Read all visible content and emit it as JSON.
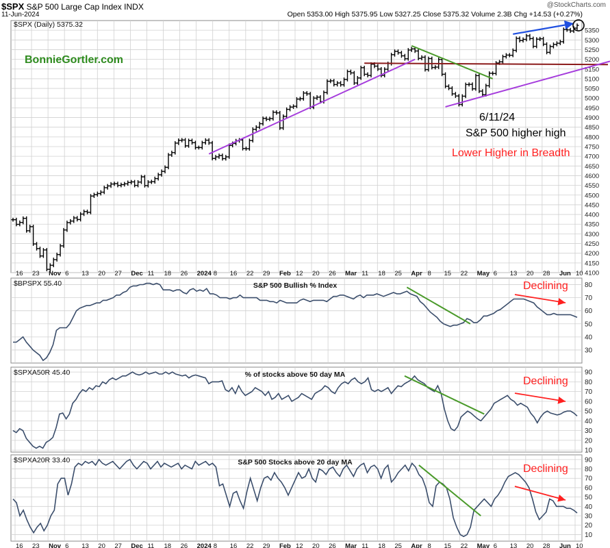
{
  "header": {
    "symbol": "$SPX",
    "name": "S&P 500 Large Cap Index",
    "exchange": "INDX",
    "date": "11-Jun-2024",
    "ohlc": "Open 5353.00  High 5375.95  Low 5327.25  Close 5375.32  Volume 2.3B  Chg +14.53 (+0.27%)",
    "logo": "@StockCharts.com"
  },
  "colors": {
    "price": "#000000",
    "indicator": "#3a4d6b",
    "support": "#a53cdc",
    "resistance": "#8b1a1a",
    "trend_down": "#4a9a2a",
    "trend_up": "#1f4fe0",
    "declining": "#ff2020",
    "brand": "#2e8b1e",
    "grid": "#d0d0d0"
  },
  "annotations": {
    "brand": "BonnieGortler.com",
    "date_note": "6/11/24",
    "higher_high": "S&P 500 higher high",
    "breadth": "Lower Higher in Breadth",
    "declining": "Declining"
  },
  "chart_data": [
    {
      "type": "line",
      "title": "$SPX (Daily) 5375.32",
      "ylim": [
        4100,
        5400
      ],
      "yticks": [
        4100,
        4150,
        4200,
        4250,
        4300,
        4350,
        4400,
        4450,
        4500,
        4550,
        4600,
        4650,
        4700,
        4750,
        4800,
        4850,
        4900,
        4950,
        5000,
        5050,
        5100,
        5150,
        5200,
        5250,
        5300,
        5350
      ],
      "xticks": [
        "16",
        "23",
        "Nov",
        "6",
        "13",
        "20",
        "27",
        "Dec",
        "11",
        "18",
        "26",
        "2024",
        "8",
        "16",
        "22",
        "29",
        "Feb",
        "12",
        "20",
        "26",
        "Mar",
        "11",
        "18",
        "25",
        "Apr",
        "8",
        "15",
        "22",
        "May",
        "6",
        "13",
        "20",
        "28",
        "Jun",
        "10"
      ],
      "bold_xticks": [
        "Nov",
        "Dec",
        "2024",
        "Feb",
        "Mar",
        "Apr",
        "May",
        "Jun"
      ],
      "values": [
        4373,
        4349,
        4359,
        4380,
        4316,
        4337,
        4248,
        4224,
        4186,
        4217,
        4117,
        4138,
        4167,
        4193,
        4238,
        4320,
        4358,
        4366,
        4382,
        4374,
        4402,
        4415,
        4411,
        4495,
        4502,
        4508,
        4515,
        4538,
        4547,
        4557,
        4559,
        4550,
        4554,
        4558,
        4565,
        4568,
        4550,
        4567,
        4594,
        4549,
        4567,
        4569,
        4585,
        4605,
        4622,
        4643,
        4707,
        4719,
        4768,
        4782,
        4784,
        4754,
        4781,
        4770,
        4745,
        4745,
        4770,
        4783,
        4769,
        4689,
        4697,
        4704,
        4688,
        4697,
        4756,
        4766,
        4780,
        4784,
        4740,
        4739,
        4781,
        4839,
        4850,
        4868,
        4895,
        4891,
        4894,
        4927,
        4924,
        4846,
        4906,
        4942,
        4954,
        4958,
        4995,
        4997,
        5026,
        5022,
        4953,
        5000,
        5005,
        4982,
        5029,
        5087,
        5089,
        5070,
        5078,
        5069,
        5096,
        5137,
        5130,
        5078,
        5104,
        5157,
        5123,
        5117,
        5175,
        5165,
        5150,
        5117,
        5149,
        5178,
        5224,
        5241,
        5234,
        5218,
        5203,
        5248,
        5254,
        5243,
        5205,
        5211,
        5147,
        5204,
        5158,
        5160,
        5199,
        5123,
        5061,
        5051,
        5022,
        5011,
        4967,
        5010,
        5070,
        5071,
        5048,
        5116,
        5036,
        5018,
        5064,
        5128,
        5127,
        5181,
        5187,
        5214,
        5222,
        5221,
        5246,
        5308,
        5297,
        5303,
        5321,
        5307,
        5267,
        5304,
        5306,
        5278,
        5236,
        5266,
        5277,
        5283,
        5291,
        5354,
        5352,
        5346,
        5361,
        5375
      ],
      "resistance_level": 5180,
      "current_value": 5375
    },
    {
      "type": "line",
      "title": "S&P 500 Bullish % Index",
      "label": "$BPSPX 55.40",
      "ylim": [
        20,
        85
      ],
      "yticks": [
        30,
        40,
        50,
        60,
        70,
        80
      ],
      "values": [
        36,
        36,
        38,
        40,
        36,
        33,
        30,
        28,
        26,
        22,
        24,
        28,
        34,
        45,
        47,
        47,
        47,
        50,
        55,
        60,
        62,
        63,
        64,
        64,
        65,
        66,
        66,
        68,
        68,
        69,
        70,
        72,
        72,
        74,
        75,
        78,
        79,
        79,
        80,
        80,
        81,
        81,
        80,
        81,
        80,
        76,
        76,
        76,
        75,
        76,
        76,
        74,
        73,
        76,
        77,
        75,
        76,
        75,
        77,
        73,
        73,
        72,
        70,
        70,
        70,
        69,
        70,
        70,
        72,
        70,
        70,
        70,
        70,
        70,
        68,
        68,
        68,
        67,
        67,
        66,
        68,
        67,
        66,
        66,
        66,
        66,
        68,
        69,
        68,
        67,
        68,
        68,
        68,
        68,
        67,
        69,
        71,
        71,
        72,
        72,
        71,
        70,
        69,
        71,
        72,
        70,
        72,
        72,
        72,
        73,
        72,
        71,
        72,
        73,
        74,
        73,
        73,
        74,
        75,
        73,
        72,
        71,
        67,
        65,
        62,
        59,
        57,
        55,
        52,
        50,
        49,
        48,
        49,
        49,
        50,
        51,
        54,
        53,
        51,
        51,
        53,
        56,
        56,
        57,
        58,
        60,
        61,
        63,
        65,
        67,
        69,
        69,
        69,
        69,
        68,
        67,
        66,
        63,
        61,
        59,
        57,
        57,
        58,
        57,
        57,
        57,
        57,
        57,
        56,
        55
      ]
    },
    {
      "type": "line",
      "title": "% of stocks above 50 day MA",
      "label": "$SPXA50R 45.40",
      "ylim": [
        8,
        95
      ],
      "yticks": [
        10,
        20,
        30,
        40,
        50,
        60,
        70,
        80,
        90
      ],
      "values": [
        30,
        28,
        32,
        30,
        22,
        18,
        14,
        12,
        14,
        12,
        18,
        20,
        23,
        33,
        47,
        48,
        42,
        47,
        58,
        62,
        68,
        72,
        70,
        74,
        72,
        76,
        75,
        80,
        78,
        82,
        84,
        82,
        84,
        86,
        86,
        88,
        90,
        88,
        87,
        88,
        90,
        88,
        89,
        90,
        88,
        88,
        90,
        88,
        90,
        88,
        87,
        86,
        87,
        84,
        86,
        87,
        86,
        85,
        84,
        78,
        80,
        80,
        80,
        81,
        72,
        70,
        74,
        68,
        76,
        70,
        66,
        68,
        70,
        74,
        72,
        70,
        66,
        70,
        62,
        64,
        68,
        62,
        64,
        66,
        60,
        62,
        64,
        68,
        66,
        64,
        62,
        68,
        70,
        72,
        76,
        74,
        70,
        68,
        74,
        78,
        80,
        78,
        82,
        84,
        80,
        78,
        80,
        84,
        72,
        70,
        72,
        70,
        72,
        74,
        68,
        72,
        76,
        75,
        78,
        80,
        82,
        86,
        82,
        80,
        78,
        74,
        72,
        70,
        76,
        68,
        52,
        40,
        32,
        30,
        34,
        44,
        47,
        50,
        48,
        45,
        42,
        40,
        44,
        48,
        52,
        58,
        60,
        62,
        64,
        66,
        62,
        60,
        56,
        58,
        56,
        54,
        48,
        44,
        38,
        44,
        48,
        50,
        48,
        47,
        46,
        47,
        49,
        50,
        50,
        48,
        45
      ]
    },
    {
      "type": "line",
      "title": "S&P 500 Stocks above 20 day MA",
      "label": "$SPXA20R 33.40",
      "ylim": [
        3,
        95
      ],
      "yticks": [
        10,
        20,
        30,
        40,
        50,
        60,
        70,
        80,
        90
      ],
      "values": [
        48,
        44,
        30,
        36,
        26,
        18,
        12,
        18,
        22,
        14,
        20,
        30,
        36,
        64,
        70,
        70,
        52,
        64,
        82,
        86,
        84,
        88,
        86,
        88,
        84,
        90,
        86,
        84,
        86,
        88,
        84,
        80,
        84,
        88,
        90,
        84,
        80,
        84,
        88,
        86,
        80,
        84,
        88,
        82,
        86,
        84,
        82,
        84,
        86,
        80,
        84,
        82,
        80,
        88,
        84,
        86,
        88,
        84,
        86,
        82,
        62,
        64,
        52,
        40,
        54,
        56,
        46,
        38,
        56,
        70,
        58,
        46,
        60,
        70,
        72,
        68,
        76,
        70,
        66,
        60,
        52,
        60,
        68,
        76,
        70,
        72,
        80,
        70,
        66,
        80,
        78,
        74,
        80,
        82,
        76,
        72,
        80,
        84,
        78,
        72,
        80,
        84,
        86,
        76,
        82,
        84,
        80,
        70,
        80,
        84,
        66,
        70,
        76,
        80,
        84,
        78,
        86,
        82,
        74,
        70,
        60,
        44,
        40,
        62,
        66,
        64,
        60,
        48,
        28,
        18,
        10,
        8,
        10,
        18,
        36,
        40,
        44,
        48,
        44,
        40,
        48,
        52,
        58,
        66,
        72,
        74,
        76,
        74,
        70,
        66,
        60,
        48,
        34,
        26,
        30,
        34,
        48,
        46,
        40,
        40,
        40,
        38,
        38,
        36,
        33
      ]
    }
  ]
}
